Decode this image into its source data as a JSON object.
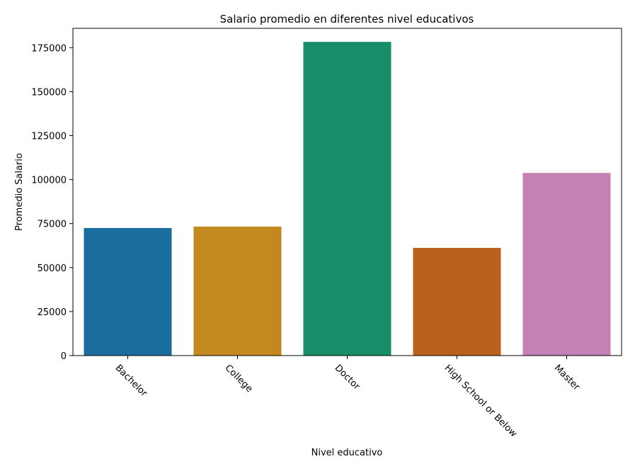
{
  "chart_data": {
    "type": "bar",
    "title": "Salario promedio en diferentes nivel educativos",
    "xlabel": "Nivel educativo",
    "ylabel": "Promedio Salario",
    "categories": [
      "Bachelor",
      "College",
      "Doctor",
      "High School or Below",
      "Master"
    ],
    "values": [
      72500,
      73300,
      178300,
      61200,
      103800
    ],
    "colors": [
      "#1a6e9f",
      "#c3891f",
      "#168e6a",
      "#b9611d",
      "#c481b4"
    ],
    "ylim": [
      0,
      186000
    ],
    "yticks": [
      0,
      25000,
      50000,
      75000,
      100000,
      125000,
      150000,
      175000
    ],
    "grid": false,
    "legend": "none"
  }
}
